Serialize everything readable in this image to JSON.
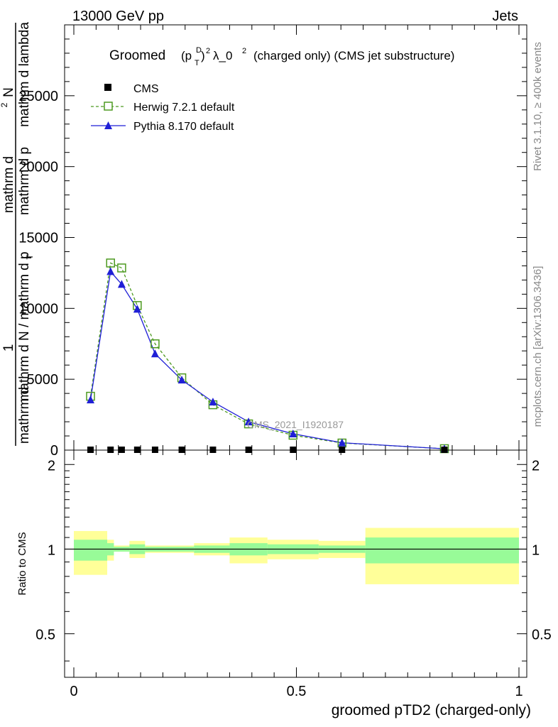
{
  "header": {
    "left": "13000 GeV pp",
    "right": "Jets"
  },
  "side_labels": {
    "rivet": "Rivet 3.1.10, ≥ 400k events",
    "mcplots": "mcplots.cern.ch [arXiv:1306.3436]"
  },
  "chart_data": [
    {
      "panel": "main",
      "type": "line",
      "title_prefix": "Groomed",
      "title_suffix": "λ_0",
      "title_rest": "(charged only) (CMS jet substructure)",
      "ylabel_line1": "mathrm d",
      "ylabel_line2": "mathrm d p",
      "ylabel_line3": "mathrm d N / mathrm d p",
      "ylabel_numer": "1",
      "ylabel_alt": "mathrm d lambda",
      "ylabel_alt2": "mathrm d",
      "ylabel_alt3": "N",
      "watermark": "CMS_2021_I1920187",
      "xlim": [
        0,
        1
      ],
      "ylim": [
        0,
        30000
      ],
      "yticks": [
        0,
        5000,
        10000,
        15000,
        20000,
        25000
      ],
      "ytick_labels": [
        "0",
        "5000",
        "10000",
        "15000",
        "20000",
        "25000"
      ],
      "legend": {
        "cms": "CMS",
        "herwig": "Herwig 7.2.1 default",
        "pythia": "Pythia 8.170 default"
      },
      "colors": {
        "herwig": "#4d9a20",
        "pythia": "#1f1fd6",
        "cms": "#000000"
      },
      "series": [
        {
          "name": "CMS",
          "x": [
            0.0375,
            0.0825,
            0.1075,
            0.1425,
            0.1825,
            0.2425,
            0.3125,
            0.3925,
            0.4925,
            0.6025,
            0.8325
          ],
          "values": [
            0,
            0,
            0,
            0,
            0,
            0,
            0,
            0,
            0,
            0,
            0
          ]
        },
        {
          "name": "Herwig 7.2.1 default",
          "x": [
            0.0375,
            0.0825,
            0.1075,
            0.1425,
            0.1825,
            0.2425,
            0.3125,
            0.3925,
            0.4925,
            0.6025,
            0.8325
          ],
          "values": [
            3800,
            13200,
            12850,
            10200,
            7500,
            5100,
            3200,
            1850,
            1050,
            500,
            100
          ]
        },
        {
          "name": "Pythia 8.170 default",
          "x": [
            0.0375,
            0.0825,
            0.1075,
            0.1425,
            0.1825,
            0.2425,
            0.3125,
            0.3925,
            0.4925,
            0.6025,
            0.8325
          ],
          "values": [
            3550,
            12600,
            11700,
            9950,
            6800,
            4950,
            3400,
            2000,
            1150,
            520,
            95
          ]
        }
      ]
    },
    {
      "panel": "ratio",
      "type": "area",
      "ylabel": "Ratio to CMS",
      "xlabel": "groomed pTD2 (charged-only)",
      "xlim": [
        0,
        1
      ],
      "ylim": [
        0.35,
        2.25
      ],
      "yticks": [
        0.5,
        1,
        2
      ],
      "ytick_labels": [
        "0.5",
        "1",
        "2"
      ],
      "xticks": [
        0,
        0.5,
        1
      ],
      "xtick_labels": [
        "0",
        "0.5",
        "1"
      ],
      "band_colors": {
        "inner": "#98fb98",
        "outer": "#ffff99"
      },
      "bands": {
        "edges": [
          0,
          0.075,
          0.09,
          0.125,
          0.16,
          0.205,
          0.27,
          0.35,
          0.435,
          0.55,
          0.655,
          1.0
        ],
        "inner_low": [
          0.91,
          0.95,
          0.98,
          0.96,
          0.98,
          0.98,
          0.97,
          0.95,
          0.96,
          0.97,
          0.89
        ],
        "inner_high": [
          1.08,
          1.05,
          1.02,
          1.04,
          1.02,
          1.02,
          1.03,
          1.05,
          1.04,
          1.03,
          1.1
        ],
        "outer_low": [
          0.81,
          0.91,
          0.98,
          0.93,
          0.97,
          0.97,
          0.95,
          0.89,
          0.92,
          0.93,
          0.75
        ],
        "outer_high": [
          1.16,
          1.08,
          1.03,
          1.07,
          1.03,
          1.03,
          1.05,
          1.1,
          1.08,
          1.07,
          1.19
        ]
      }
    }
  ]
}
